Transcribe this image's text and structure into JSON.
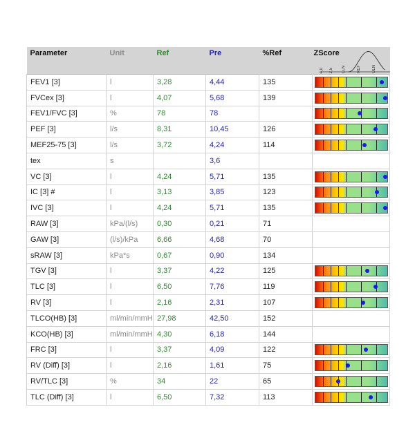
{
  "header": {
    "parameter": "Parameter",
    "unit": "Unit",
    "ref": "Ref",
    "pre": "Pre",
    "pct_ref": "%Ref",
    "zscore": "ZScore",
    "zscore_scale": [
      "4,0",
      "2,5",
      "LLN",
      "REF",
      "ULN"
    ]
  },
  "rows": [
    {
      "parameter": "FEV1 [3]",
      "unit": "l",
      "ref": "3,28",
      "pre": "4,44",
      "pct_ref": "135",
      "z": 0.92
    },
    {
      "parameter": "FVCex [3]",
      "unit": "l",
      "ref": "4,07",
      "pre": "5,68",
      "pct_ref": "139",
      "z": 0.97
    },
    {
      "parameter": "FEV1/FVC [3]",
      "unit": "%",
      "ref": "78",
      "pre": "78",
      "pct_ref": "",
      "z": 0.62
    },
    {
      "parameter": "PEF [3]",
      "unit": "l/s",
      "ref": "8,31",
      "pre": "10,45",
      "pct_ref": "126",
      "z": 0.84
    },
    {
      "parameter": "MEF25-75 [3]",
      "unit": "l/s",
      "ref": "3,72",
      "pre": "4,24",
      "pct_ref": "114",
      "z": 0.68
    },
    {
      "parameter": "tex",
      "unit": "s",
      "ref": "",
      "pre": "3,6",
      "pct_ref": "",
      "z": null
    },
    {
      "parameter": "VC [3]",
      "unit": "l",
      "ref": "4,24",
      "pre": "5,71",
      "pct_ref": "135",
      "z": 0.97
    },
    {
      "parameter": "IC [3] #",
      "unit": "l",
      "ref": "3,13",
      "pre": "3,85",
      "pct_ref": "123",
      "z": 0.86
    },
    {
      "parameter": "IVC [3]",
      "unit": "l",
      "ref": "4,24",
      "pre": "5,71",
      "pct_ref": "135",
      "z": 0.97
    },
    {
      "parameter": "RAW [3]",
      "unit": "kPa/(l/s)",
      "ref": "0,30",
      "pre": "0,21",
      "pct_ref": "71",
      "z": null
    },
    {
      "parameter": "GAW [3]",
      "unit": "(l/s)/kPa",
      "ref": "6,66",
      "pre": "4,68",
      "pct_ref": "70",
      "z": null
    },
    {
      "parameter": "sRAW [3]",
      "unit": "kPa*s",
      "ref": "0,67",
      "pre": "0,90",
      "pct_ref": "134",
      "z": null
    },
    {
      "parameter": "TGV [3]",
      "unit": "l",
      "ref": "3,37",
      "pre": "4,22",
      "pct_ref": "125",
      "z": 0.72
    },
    {
      "parameter": "TLC [3]",
      "unit": "l",
      "ref": "6,50",
      "pre": "7,76",
      "pct_ref": "119",
      "z": 0.84
    },
    {
      "parameter": "RV [3]",
      "unit": "l",
      "ref": "2,16",
      "pre": "2,31",
      "pct_ref": "107",
      "z": 0.66
    },
    {
      "parameter": "TLCO(HB) [3]",
      "unit": "ml/min/mmHg",
      "ref": "27,98",
      "pre": "42,50",
      "pct_ref": "152",
      "z": null
    },
    {
      "parameter": "KCO(HB) [3]",
      "unit": "ml/min/mmHg",
      "ref": "4,30",
      "pre": "6,18",
      "pct_ref": "144",
      "z": null
    },
    {
      "parameter": "FRC [3]",
      "unit": "l",
      "ref": "3,37",
      "pre": "4,09",
      "pct_ref": "122",
      "z": 0.7
    },
    {
      "parameter": "RV (Diff) [3]",
      "unit": "l",
      "ref": "2,16",
      "pre": "1,61",
      "pct_ref": "75",
      "z": 0.45
    },
    {
      "parameter": "RV/TLC [3]",
      "unit": "%",
      "ref": "34",
      "pre": "22",
      "pct_ref": "65",
      "z": 0.32
    },
    {
      "parameter": "TLC (Diff) [3]",
      "unit": "l",
      "ref": "6,50",
      "pre": "7,32",
      "pct_ref": "113",
      "z": 0.77
    }
  ],
  "colors": {
    "ref_text": "#2e8b2e",
    "pre_text": "#2020cc",
    "unit_text": "#8a8a8a",
    "marker": "#1a1aee",
    "header_bg": "#d4d4d4"
  }
}
